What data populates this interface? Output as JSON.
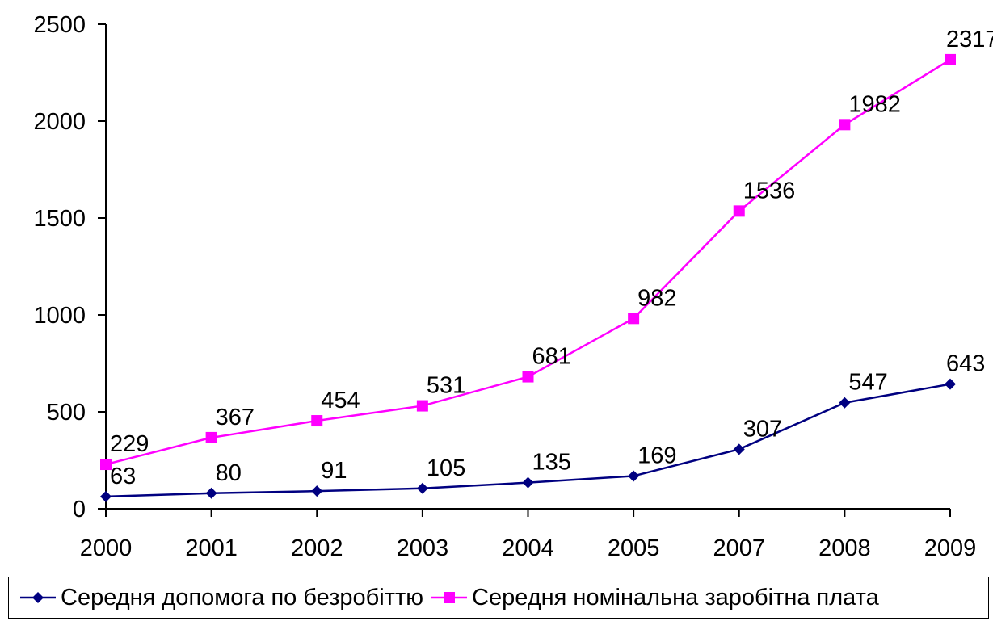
{
  "chart_data": {
    "type": "line",
    "categories": [
      "2000",
      "2001",
      "2002",
      "2003",
      "2004",
      "2005",
      "2007",
      "2008",
      "2009"
    ],
    "series": [
      {
        "name": "Середня допомога по безробіттю",
        "values": [
          63,
          80,
          91,
          105,
          135,
          169,
          307,
          547,
          643
        ],
        "color": "#000080",
        "marker": "diamond"
      },
      {
        "name": "Середня номінальна заробітна плата",
        "values": [
          229,
          367,
          454,
          531,
          681,
          982,
          1536,
          1982,
          2317
        ],
        "color": "#FF00FF",
        "marker": "square"
      }
    ],
    "yticks": [
      0,
      500,
      1000,
      1500,
      2000,
      2500
    ],
    "ylim": [
      0,
      2500
    ],
    "data_labels": true,
    "grid": false,
    "legend_position": "bottom"
  }
}
